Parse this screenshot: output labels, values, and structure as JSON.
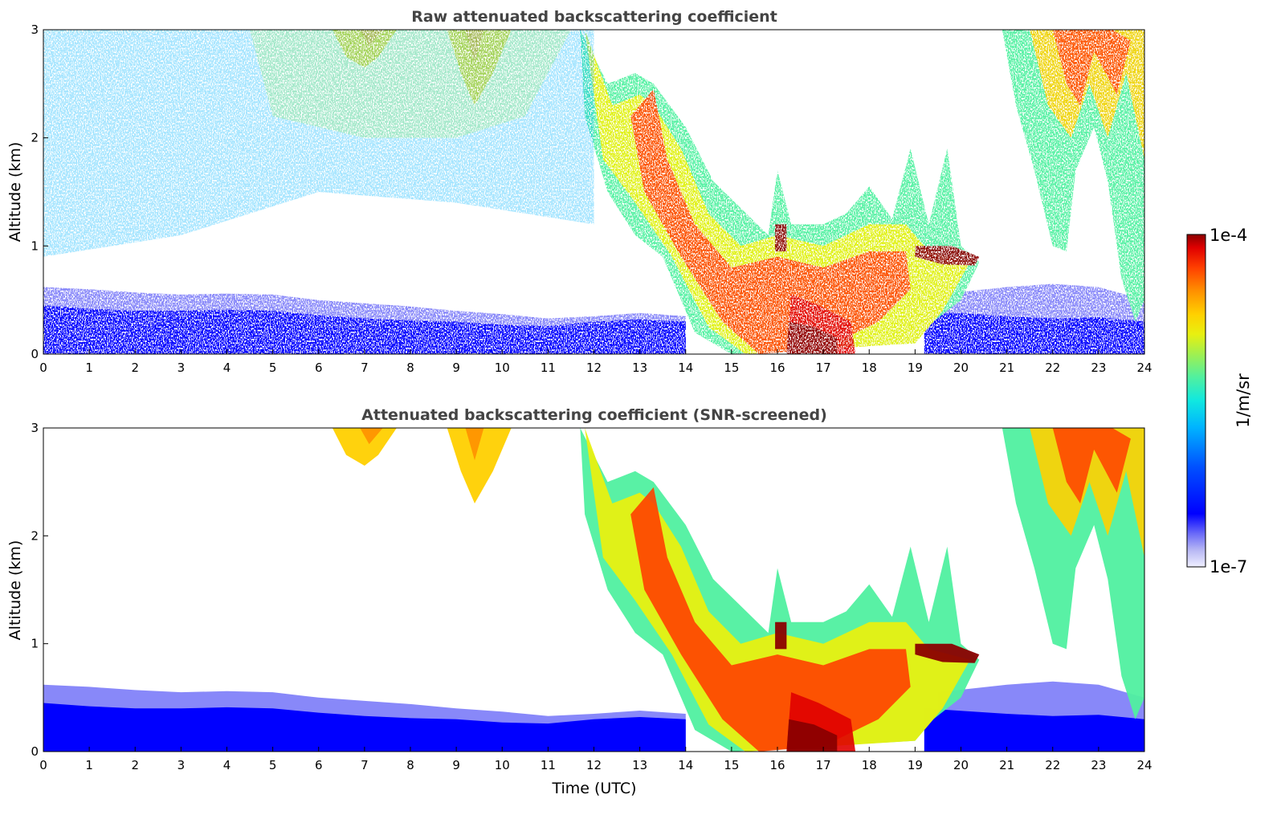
{
  "chart_data": [
    {
      "type": "heatmap",
      "title": "Raw attenuated backscattering coefficient",
      "xlabel": "",
      "ylabel": "Altitude (km)",
      "xlim": [
        0,
        24
      ],
      "ylim": [
        0,
        3
      ],
      "x_ticks": [
        "0",
        "1",
        "2",
        "3",
        "4",
        "5",
        "6",
        "7",
        "8",
        "9",
        "10",
        "11",
        "12",
        "13",
        "14",
        "15",
        "16",
        "17",
        "18",
        "19",
        "20",
        "21",
        "22",
        "23",
        "24"
      ],
      "y_ticks": [
        "0",
        "1",
        "2",
        "3"
      ],
      "screened": false
    },
    {
      "type": "heatmap",
      "title": "Attenuated backscattering coefficient (SNR-screened)",
      "xlabel": "Time (UTC)",
      "ylabel": "Altitude (km)",
      "xlim": [
        0,
        24
      ],
      "ylim": [
        0,
        3
      ],
      "x_ticks": [
        "0",
        "1",
        "2",
        "3",
        "4",
        "5",
        "6",
        "7",
        "8",
        "9",
        "10",
        "11",
        "12",
        "13",
        "14",
        "15",
        "16",
        "17",
        "18",
        "19",
        "20",
        "21",
        "22",
        "23",
        "24"
      ],
      "y_ticks": [
        "0",
        "1",
        "2",
        "3"
      ],
      "screened": true
    }
  ],
  "colorbar": {
    "label": "1/m/sr",
    "min_label": "1e-7",
    "max_label": "1e-4",
    "scale": "log",
    "colormap": [
      "#eeeeff",
      "#b8b8f4",
      "#6a6af8",
      "#0000ff",
      "#0050ff",
      "#00b4ff",
      "#10e8e0",
      "#50f0a0",
      "#a0f050",
      "#e8f010",
      "#ffd000",
      "#ff9000",
      "#ff4000",
      "#e00000",
      "#8b0000"
    ]
  }
}
